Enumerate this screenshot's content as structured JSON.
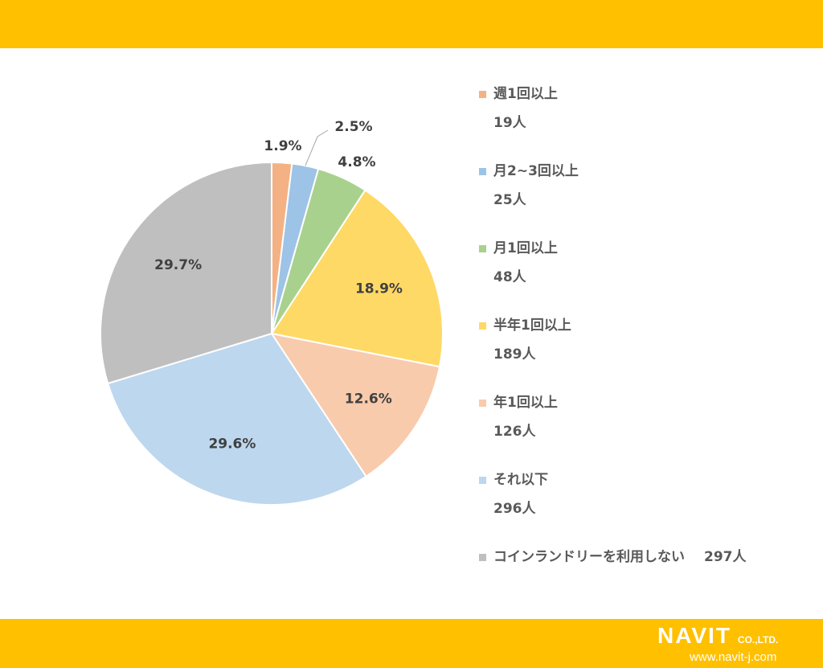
{
  "chart_data": {
    "type": "pie",
    "start": "top",
    "direction": "clockwise",
    "categories": [
      "週1回以上",
      "月2~3回以上",
      "月1回以上",
      "半年1回以上",
      "年1回以上",
      "それ以下",
      "コインランドリーを利用しない"
    ],
    "values": [
      19,
      25,
      48,
      189,
      126,
      296,
      297
    ],
    "counts": [
      "19人",
      "25人",
      "48人",
      "189人",
      "126人",
      "296人",
      "297人"
    ],
    "percent_labels": [
      "1.9%",
      "2.5%",
      "4.8%",
      "18.9%",
      "12.6%",
      "29.6%",
      "29.7%"
    ],
    "colors": [
      "#F4B183",
      "#9DC3E6",
      "#A9D18E",
      "#FFD966",
      "#F8CBAD",
      "#BDD7EE",
      "#BFBFBF"
    ],
    "legend_position": "right"
  },
  "logo": {
    "brand": "NAVIT",
    "suffix": "CO.,LTD.",
    "url": "www.navit-j.com"
  },
  "theme": {
    "band_color": "#FFC000"
  }
}
